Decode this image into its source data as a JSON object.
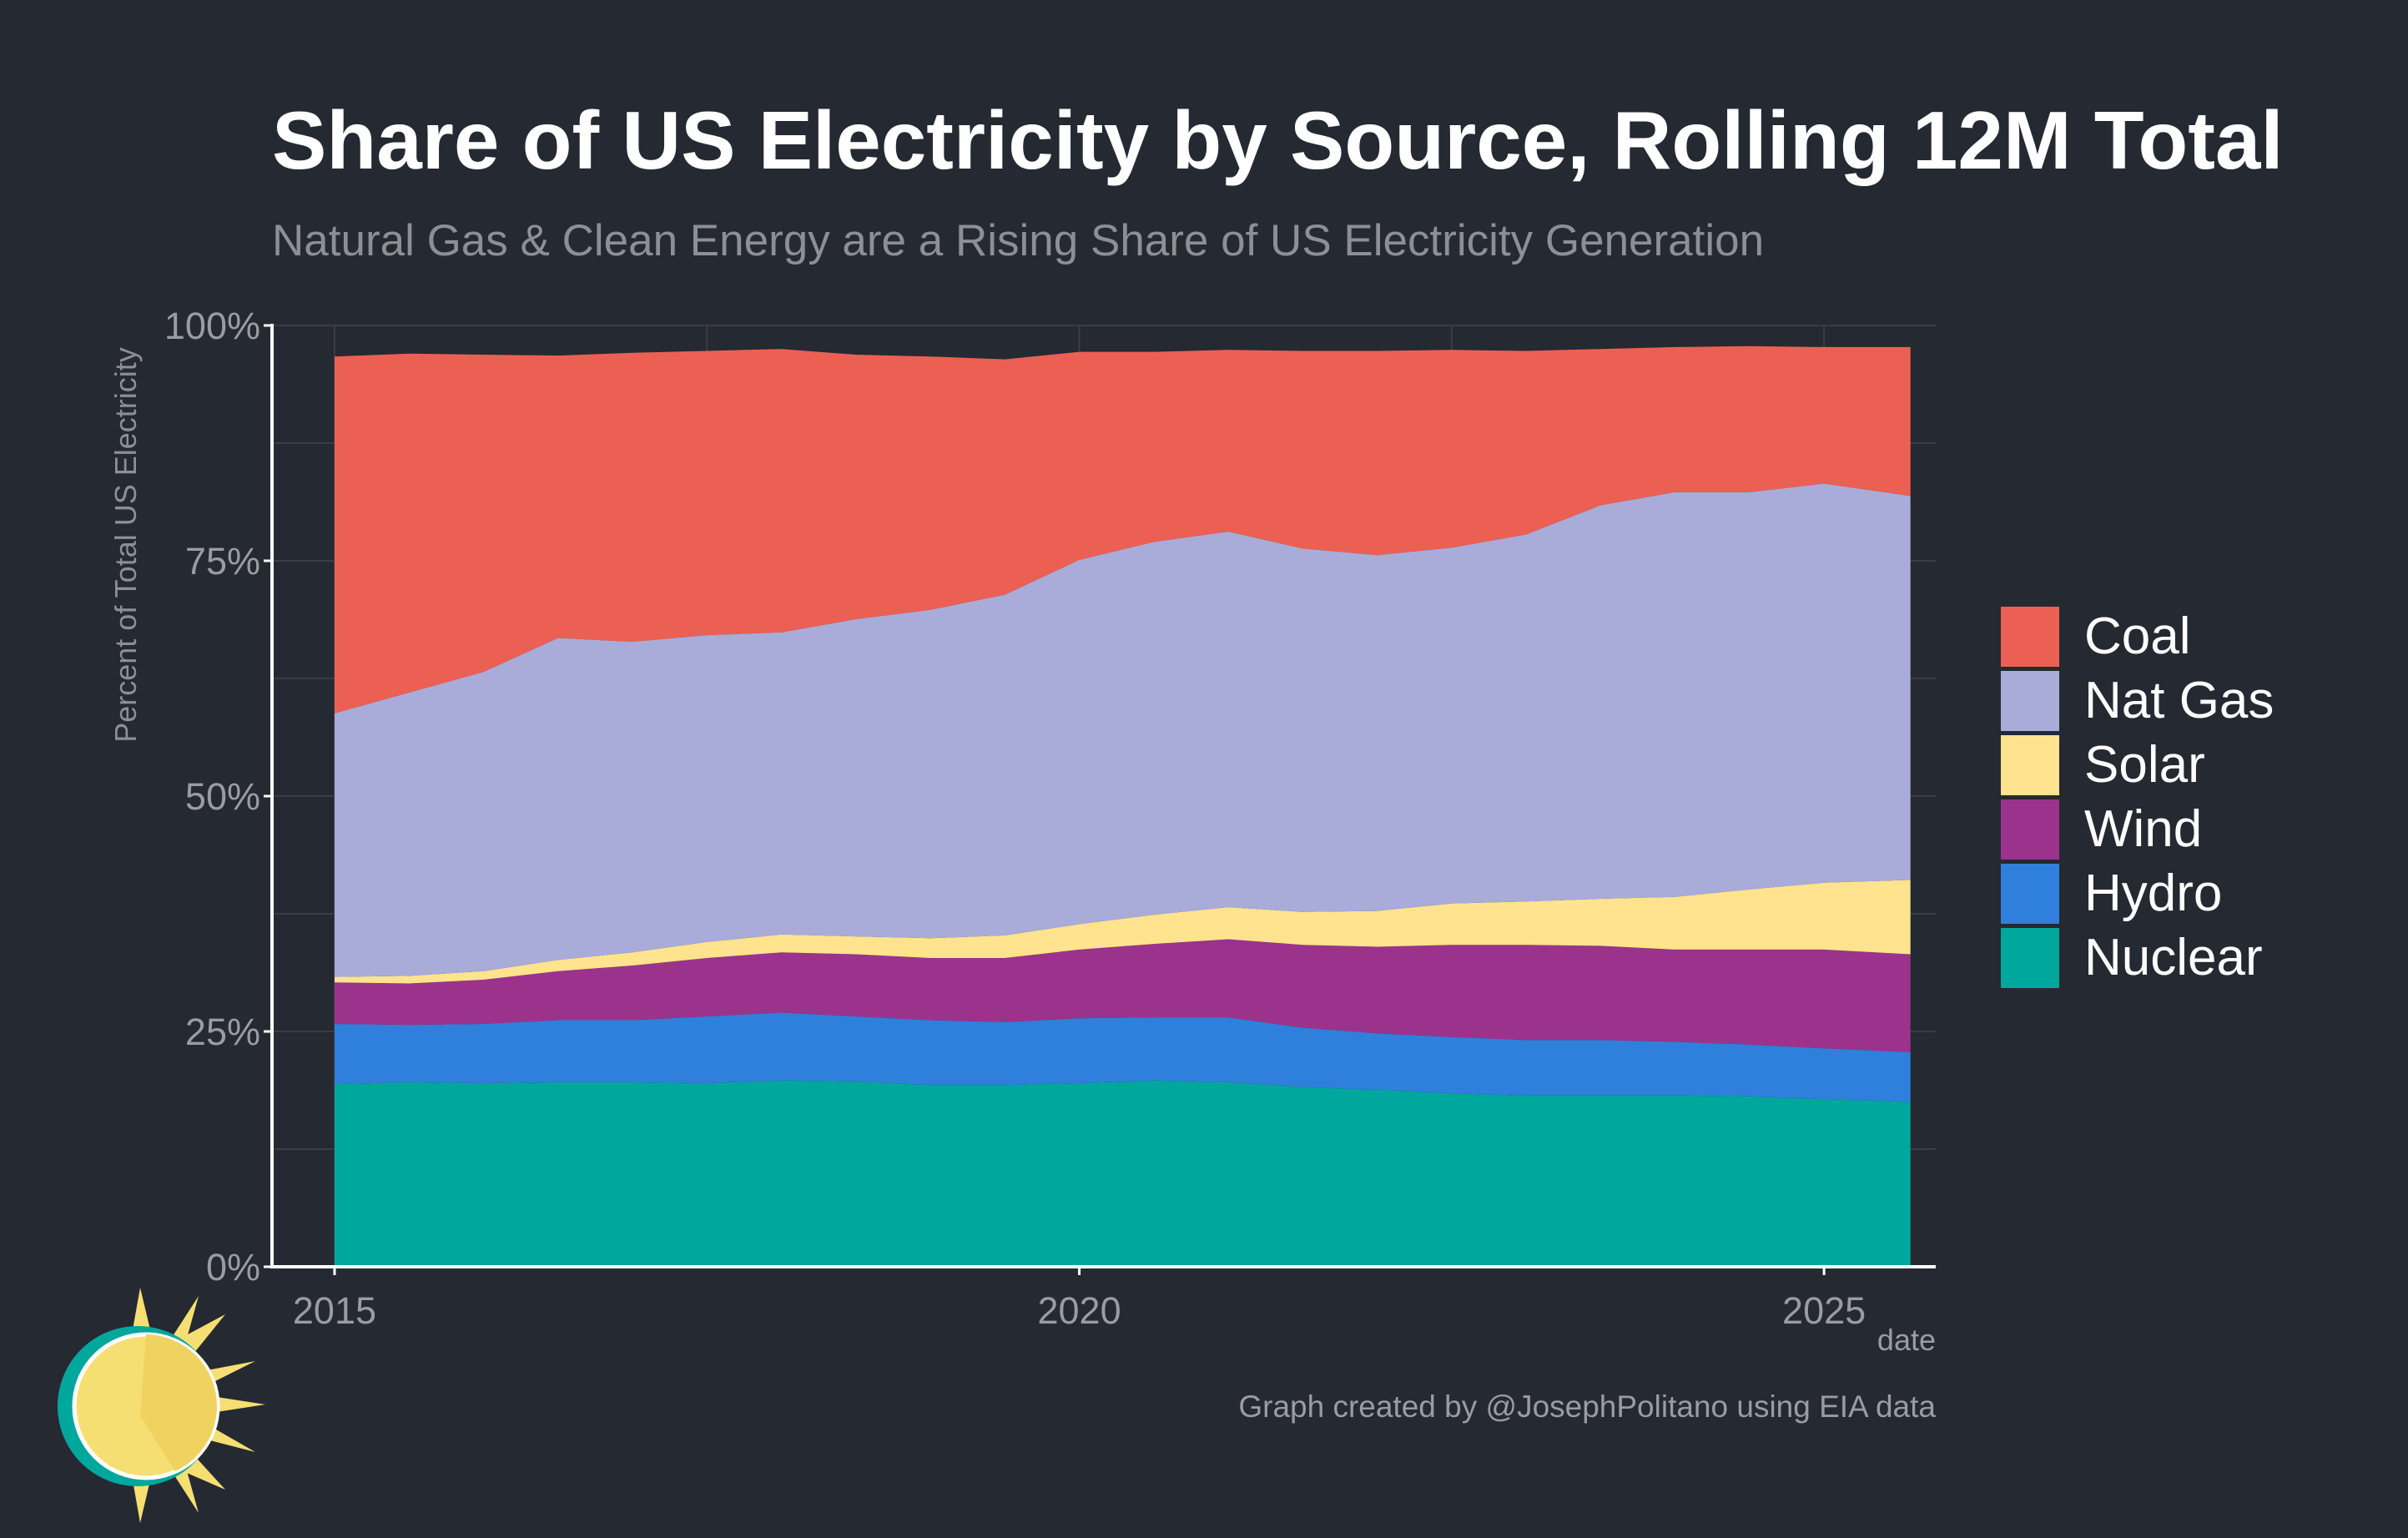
{
  "title": "Share of US Electricity by Source, Rolling 12M Total",
  "subtitle": "Natural Gas & Clean Energy are a Rising Share of US Electricity Generation",
  "caption": "Graph created by @JosephPolitano using EIA data",
  "chart_data": {
    "type": "area",
    "stacked": true,
    "title": "Share of US Electricity by Source, Rolling 12M Total",
    "subtitle": "Natural Gas & Clean Energy are a Rising Share of US Electricity Generation",
    "xlabel": "date",
    "ylabel": "Percent of Total US Electricity",
    "x_ticks": [
      "2015",
      "2020",
      "2025"
    ],
    "y_ticks": [
      "0%",
      "25%",
      "50%",
      "75%",
      "100%"
    ],
    "ylim": [
      0,
      100
    ],
    "xlim": [
      2014.58,
      2025.75
    ],
    "grid": true,
    "legend_position": "right",
    "x": [
      2015.0,
      2015.5,
      2016.0,
      2016.5,
      2017.0,
      2017.5,
      2018.0,
      2018.5,
      2019.0,
      2019.5,
      2020.0,
      2020.5,
      2021.0,
      2021.5,
      2022.0,
      2022.5,
      2023.0,
      2023.5,
      2024.0,
      2024.5,
      2025.0,
      2025.58
    ],
    "series": [
      {
        "name": "Nuclear",
        "color": "#00A79D",
        "values": [
          19.4,
          19.6,
          19.5,
          19.6,
          19.6,
          19.5,
          19.8,
          19.7,
          19.3,
          19.3,
          19.5,
          19.8,
          19.6,
          19.1,
          18.8,
          18.4,
          18.2,
          18.2,
          18.2,
          18.1,
          17.8,
          17.5
        ]
      },
      {
        "name": "Hydro",
        "color": "#2F80DC",
        "values": [
          6.4,
          6.1,
          6.3,
          6.6,
          6.6,
          7.1,
          7.2,
          6.9,
          6.9,
          6.7,
          6.9,
          6.7,
          6.9,
          6.3,
          6.0,
          6.0,
          5.9,
          5.9,
          5.7,
          5.5,
          5.4,
          5.3
        ]
      },
      {
        "name": "Wind",
        "color": "#9B338C",
        "values": [
          4.4,
          4.4,
          4.7,
          5.2,
          5.8,
          6.2,
          6.4,
          6.6,
          6.6,
          6.8,
          7.3,
          7.8,
          8.3,
          8.8,
          9.2,
          9.8,
          10.1,
          10.0,
          9.8,
          10.1,
          10.5,
          10.4
        ]
      },
      {
        "name": "Solar",
        "color": "#FFE38E",
        "values": [
          0.6,
          0.8,
          0.9,
          1.2,
          1.4,
          1.7,
          1.9,
          1.9,
          2.1,
          2.4,
          2.7,
          3.1,
          3.4,
          3.5,
          3.8,
          4.4,
          4.6,
          5.0,
          5.6,
          6.4,
          7.1,
          7.9
        ]
      },
      {
        "name": "Nat Gas",
        "color": "#A9ACD8",
        "values": [
          28.0,
          30.1,
          31.8,
          34.2,
          33.0,
          32.6,
          32.1,
          33.7,
          34.9,
          36.2,
          38.7,
          39.6,
          39.9,
          38.6,
          37.8,
          37.8,
          39.0,
          41.8,
          43.0,
          42.2,
          42.4,
          40.8
        ]
      },
      {
        "name": "Coal",
        "color": "#EC6054",
        "values": [
          37.9,
          36.0,
          33.7,
          30.0,
          30.7,
          30.2,
          30.1,
          28.1,
          26.9,
          25.0,
          22.1,
          20.2,
          19.3,
          21.0,
          21.7,
          21.0,
          19.5,
          16.6,
          15.4,
          15.5,
          14.5,
          15.8
        ]
      }
    ]
  },
  "legend_order": [
    "Coal",
    "Nat Gas",
    "Solar",
    "Wind",
    "Hydro",
    "Nuclear"
  ],
  "colors": {
    "background": "#252932",
    "grid": "#3a3d46",
    "axis": "#ffffff",
    "tick_text": "#9a9ca3",
    "logo_sun": "#F5DF72",
    "logo_ring": "#00A79D"
  }
}
